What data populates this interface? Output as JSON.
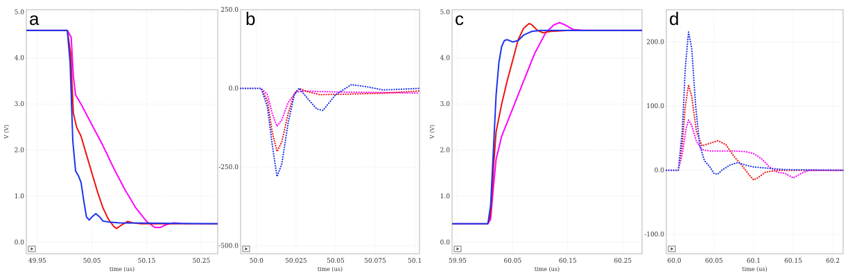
{
  "chart_data": [
    {
      "panel": "a",
      "type": "line",
      "xlabel": "time (us)",
      "ylabel": "V (V)",
      "xlim": [
        49.93,
        50.28
      ],
      "ylim": [
        -0.25,
        5.05
      ],
      "xticks": [
        49.95,
        50.05,
        50.15,
        50.25
      ],
      "xticklabels": [
        "49.95",
        "50.05",
        "50.15",
        "50.25"
      ],
      "yticks": [
        0,
        1,
        2,
        3,
        4,
        5
      ],
      "yticklabels": [
        "0.0",
        "1.0",
        "2.0",
        "3.0",
        "4.0",
        "5.0"
      ],
      "series": [
        {
          "color": "#ff00ff",
          "dashed": false,
          "points": [
            [
              49.93,
              4.6
            ],
            [
              50.005,
              4.6
            ],
            [
              50.012,
              4.45
            ],
            [
              50.016,
              3.6
            ],
            [
              50.02,
              3.2
            ],
            [
              50.03,
              3.0
            ],
            [
              50.05,
              2.55
            ],
            [
              50.07,
              2.1
            ],
            [
              50.09,
              1.6
            ],
            [
              50.11,
              1.15
            ],
            [
              50.13,
              0.75
            ],
            [
              50.15,
              0.45
            ],
            [
              50.165,
              0.32
            ],
            [
              50.175,
              0.32
            ],
            [
              50.185,
              0.38
            ],
            [
              50.2,
              0.42
            ],
            [
              50.22,
              0.4
            ],
            [
              50.28,
              0.4
            ]
          ]
        },
        {
          "color": "#ee1111",
          "dashed": false,
          "points": [
            [
              49.93,
              4.6
            ],
            [
              50.005,
              4.6
            ],
            [
              50.011,
              4.1
            ],
            [
              50.016,
              2.8
            ],
            [
              50.022,
              2.5
            ],
            [
              50.03,
              2.3
            ],
            [
              50.04,
              1.9
            ],
            [
              50.05,
              1.5
            ],
            [
              50.06,
              1.1
            ],
            [
              50.07,
              0.75
            ],
            [
              50.08,
              0.5
            ],
            [
              50.09,
              0.34
            ],
            [
              50.095,
              0.3
            ],
            [
              50.105,
              0.38
            ],
            [
              50.115,
              0.45
            ],
            [
              50.125,
              0.42
            ],
            [
              50.14,
              0.4
            ],
            [
              50.28,
              0.4
            ]
          ]
        },
        {
          "color": "#1a33ee",
          "dashed": false,
          "points": [
            [
              49.93,
              4.6
            ],
            [
              50.005,
              4.6
            ],
            [
              50.01,
              3.9
            ],
            [
              50.015,
              2.2
            ],
            [
              50.02,
              1.55
            ],
            [
              50.025,
              1.45
            ],
            [
              50.03,
              1.3
            ],
            [
              50.035,
              0.9
            ],
            [
              50.04,
              0.55
            ],
            [
              50.045,
              0.48
            ],
            [
              50.05,
              0.55
            ],
            [
              50.057,
              0.62
            ],
            [
              50.064,
              0.55
            ],
            [
              50.07,
              0.46
            ],
            [
              50.08,
              0.44
            ],
            [
              50.1,
              0.42
            ],
            [
              50.28,
              0.4
            ]
          ]
        }
      ]
    },
    {
      "panel": "b",
      "type": "line",
      "xlabel": "time (us)",
      "ylabel": "",
      "xlim": [
        49.99,
        50.103
      ],
      "ylim": [
        -525,
        250
      ],
      "xticks": [
        50.0,
        50.025,
        50.05,
        50.075,
        50.1
      ],
      "xticklabels": [
        "50.0",
        "50.025",
        "50.05",
        "50.075",
        "50.1"
      ],
      "yticks": [
        -500,
        -250,
        0,
        250
      ],
      "yticklabels": [
        "-500.0",
        "-250.0",
        "0.0",
        "250.0"
      ],
      "series": [
        {
          "color": "#ff00ff",
          "dashed": true,
          "points": [
            [
              49.99,
              0
            ],
            [
              50.003,
              0
            ],
            [
              50.007,
              -20
            ],
            [
              50.01,
              -80
            ],
            [
              50.013,
              -120
            ],
            [
              50.016,
              -100
            ],
            [
              50.02,
              -45
            ],
            [
              50.025,
              -12
            ],
            [
              50.03,
              -8
            ],
            [
              50.04,
              -10
            ],
            [
              50.06,
              -12
            ],
            [
              50.08,
              -13
            ],
            [
              50.103,
              -15
            ]
          ]
        },
        {
          "color": "#ee1111",
          "dashed": true,
          "points": [
            [
              49.99,
              0
            ],
            [
              50.003,
              0
            ],
            [
              50.007,
              -40
            ],
            [
              50.01,
              -140
            ],
            [
              50.013,
              -200
            ],
            [
              50.016,
              -170
            ],
            [
              50.02,
              -80
            ],
            [
              50.024,
              -15
            ],
            [
              50.027,
              0
            ],
            [
              50.032,
              -10
            ],
            [
              50.04,
              -20
            ],
            [
              50.06,
              -18
            ],
            [
              50.08,
              -15
            ],
            [
              50.103,
              -8
            ]
          ]
        },
        {
          "color": "#1a33ee",
          "dashed": true,
          "points": [
            [
              49.99,
              0
            ],
            [
              50.003,
              0
            ],
            [
              50.007,
              -60
            ],
            [
              50.01,
              -180
            ],
            [
              50.013,
              -280
            ],
            [
              50.016,
              -240
            ],
            [
              50.02,
              -110
            ],
            [
              50.024,
              -20
            ],
            [
              50.027,
              0
            ],
            [
              50.032,
              -30
            ],
            [
              50.038,
              -65
            ],
            [
              50.042,
              -70
            ],
            [
              50.05,
              -20
            ],
            [
              50.06,
              12
            ],
            [
              50.07,
              5
            ],
            [
              50.08,
              -5
            ],
            [
              50.09,
              -3
            ],
            [
              50.103,
              0
            ]
          ]
        }
      ]
    },
    {
      "panel": "c",
      "type": "line",
      "xlabel": "time (us)",
      "ylabel": "V (V)",
      "xlim": [
        59.94,
        60.285
      ],
      "ylim": [
        -0.25,
        5.05
      ],
      "xticks": [
        59.95,
        60.05,
        60.15,
        60.25
      ],
      "xticklabels": [
        "59.95",
        "60.05",
        "60.15",
        "60.25"
      ],
      "yticks": [
        0,
        1,
        2,
        3,
        4,
        5
      ],
      "yticklabels": [
        "0.0",
        "1.0",
        "2.0",
        "3.0",
        "4.0",
        "5.0"
      ],
      "series": [
        {
          "color": "#ff00ff",
          "dashed": false,
          "points": [
            [
              59.94,
              0.4
            ],
            [
              60.005,
              0.4
            ],
            [
              60.01,
              0.5
            ],
            [
              60.015,
              1.2
            ],
            [
              60.02,
              1.8
            ],
            [
              60.03,
              2.3
            ],
            [
              60.05,
              2.9
            ],
            [
              60.07,
              3.5
            ],
            [
              60.09,
              4.1
            ],
            [
              60.11,
              4.55
            ],
            [
              60.125,
              4.72
            ],
            [
              60.135,
              4.77
            ],
            [
              60.145,
              4.72
            ],
            [
              60.16,
              4.62
            ],
            [
              60.18,
              4.6
            ],
            [
              60.285,
              4.6
            ]
          ]
        },
        {
          "color": "#ee1111",
          "dashed": false,
          "points": [
            [
              59.94,
              0.4
            ],
            [
              60.005,
              0.4
            ],
            [
              60.01,
              0.6
            ],
            [
              60.015,
              1.6
            ],
            [
              60.02,
              2.4
            ],
            [
              60.03,
              3.0
            ],
            [
              60.04,
              3.5
            ],
            [
              60.05,
              3.95
            ],
            [
              60.06,
              4.4
            ],
            [
              60.07,
              4.65
            ],
            [
              60.08,
              4.75
            ],
            [
              60.085,
              4.72
            ],
            [
              60.095,
              4.6
            ],
            [
              60.105,
              4.55
            ],
            [
              60.12,
              4.58
            ],
            [
              60.15,
              4.6
            ],
            [
              60.285,
              4.6
            ]
          ]
        },
        {
          "color": "#1a33ee",
          "dashed": false,
          "points": [
            [
              59.94,
              0.4
            ],
            [
              60.005,
              0.4
            ],
            [
              60.01,
              0.8
            ],
            [
              60.015,
              2.0
            ],
            [
              60.02,
              3.2
            ],
            [
              60.025,
              3.9
            ],
            [
              60.03,
              4.25
            ],
            [
              60.035,
              4.38
            ],
            [
              60.04,
              4.4
            ],
            [
              60.05,
              4.35
            ],
            [
              60.06,
              4.38
            ],
            [
              60.07,
              4.5
            ],
            [
              60.085,
              4.58
            ],
            [
              60.1,
              4.6
            ],
            [
              60.285,
              4.6
            ]
          ]
        }
      ]
    },
    {
      "panel": "d",
      "type": "line",
      "xlabel": "time (us)",
      "ylabel": "",
      "xlim": [
        59.99,
        60.213
      ],
      "ylim": [
        -130,
        250
      ],
      "xticks": [
        60.0,
        60.05,
        60.1,
        60.15,
        60.2
      ],
      "xticklabels": [
        "60.0",
        "60.05",
        "60.1",
        "60.15",
        "60.2"
      ],
      "yticks": [
        -100,
        0,
        100,
        200
      ],
      "yticklabels": [
        "-100.0",
        "0.0",
        "100.0",
        "200.0"
      ],
      "series": [
        {
          "color": "#ff00ff",
          "dashed": true,
          "points": [
            [
              59.99,
              0
            ],
            [
              60.005,
              0
            ],
            [
              60.01,
              25
            ],
            [
              60.015,
              65
            ],
            [
              60.018,
              78
            ],
            [
              60.022,
              70
            ],
            [
              60.028,
              45
            ],
            [
              60.035,
              32
            ],
            [
              60.045,
              30
            ],
            [
              60.06,
              30
            ],
            [
              60.075,
              30
            ],
            [
              60.09,
              29
            ],
            [
              60.1,
              26
            ],
            [
              60.11,
              18
            ],
            [
              60.12,
              5
            ],
            [
              60.13,
              -3
            ],
            [
              60.14,
              -5
            ],
            [
              60.15,
              -12
            ],
            [
              60.16,
              -5
            ],
            [
              60.17,
              0
            ],
            [
              60.213,
              0
            ]
          ]
        },
        {
          "color": "#ee1111",
          "dashed": true,
          "points": [
            [
              59.99,
              0
            ],
            [
              60.005,
              0
            ],
            [
              60.01,
              40
            ],
            [
              60.014,
              100
            ],
            [
              60.018,
              133
            ],
            [
              60.022,
              115
            ],
            [
              60.028,
              60
            ],
            [
              60.035,
              38
            ],
            [
              60.045,
              42
            ],
            [
              60.055,
              46
            ],
            [
              60.065,
              40
            ],
            [
              60.075,
              22
            ],
            [
              60.085,
              8
            ],
            [
              60.095,
              -8
            ],
            [
              60.1,
              -15
            ],
            [
              60.105,
              -12
            ],
            [
              60.115,
              -3
            ],
            [
              60.13,
              0
            ],
            [
              60.213,
              0
            ]
          ]
        },
        {
          "color": "#1a33ee",
          "dashed": true,
          "points": [
            [
              59.99,
              0
            ],
            [
              60.005,
              0
            ],
            [
              60.01,
              60
            ],
            [
              60.014,
              160
            ],
            [
              60.018,
              215
            ],
            [
              60.022,
              190
            ],
            [
              60.027,
              100
            ],
            [
              60.032,
              40
            ],
            [
              60.038,
              15
            ],
            [
              60.045,
              5
            ],
            [
              60.05,
              -5
            ],
            [
              60.055,
              -6
            ],
            [
              60.06,
              0
            ],
            [
              60.07,
              8
            ],
            [
              60.08,
              12
            ],
            [
              60.09,
              8
            ],
            [
              60.1,
              5
            ],
            [
              60.12,
              3
            ],
            [
              60.14,
              1
            ],
            [
              60.213,
              0
            ]
          ]
        }
      ]
    }
  ]
}
